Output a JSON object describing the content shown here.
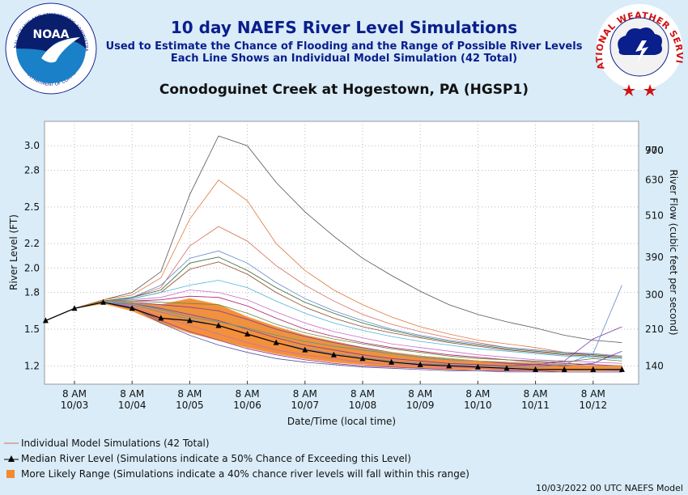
{
  "header": {
    "title": "10 day NAEFS River Level Simulations",
    "subtitle1": "Used to Estimate the Chance of Flooding and the Range of Possible River Levels",
    "subtitle2": "Each Line Shows an Individual Model Simulation (42 Total)",
    "station": "Conodoguinet Creek at Hogestown, PA (HGSP1)"
  },
  "logos": {
    "noaa_text": "NOAA",
    "noaa_ring": "NATIONAL OCEANIC AND ATMOSPHERIC ADMINISTRATION",
    "noaa_ring_bottom": "U.S. DEPARTMENT OF COMMERCE",
    "nws_ring": "NATIONAL WEATHER SERVICE"
  },
  "chart_data": {
    "type": "line",
    "xlabel": "Date/Time (local time)",
    "ylabel": "River Level (FT)",
    "ylabel_right": "River Flow (cubic feet per second)",
    "ylim": [
      1.05,
      3.2
    ],
    "x_ticks": [
      {
        "time": "8 AM",
        "date": "10/03"
      },
      {
        "time": "8 AM",
        "date": "10/04"
      },
      {
        "time": "8 AM",
        "date": "10/05"
      },
      {
        "time": "8 AM",
        "date": "10/06"
      },
      {
        "time": "8 AM",
        "date": "10/07"
      },
      {
        "time": "8 AM",
        "date": "10/08"
      },
      {
        "time": "8 AM",
        "date": "10/09"
      },
      {
        "time": "8 AM",
        "date": "10/10"
      },
      {
        "time": "8 AM",
        "date": "10/11"
      },
      {
        "time": "8 AM",
        "date": "10/12"
      }
    ],
    "y_ticks": [
      1.2,
      1.5,
      1.8,
      2.0,
      2.2,
      2.5,
      2.8,
      3.0
    ],
    "y_tick_labels": [
      "1.2",
      "1.5",
      "1.8",
      "2.0",
      "2.2",
      "2.5",
      "2.8",
      "3.0"
    ],
    "y2_ticks": [
      {
        "level": 1.2,
        "label": "140"
      },
      {
        "level": 1.5,
        "label": "210"
      },
      {
        "level": 1.78,
        "label": "300"
      },
      {
        "level": 2.09,
        "label": "390"
      },
      {
        "level": 2.43,
        "label": "510"
      },
      {
        "level": 2.72,
        "label": "630"
      },
      {
        "level": 3.01,
        "label": "770"
      },
      {
        "level": 3.26,
        "label": "900"
      }
    ],
    "y2_tick_labels_ordered": [
      "140",
      "210",
      "300",
      "390",
      "510",
      "630",
      "770",
      "900"
    ],
    "grid": true,
    "series": [
      {
        "values": [
          1.57,
          1.67,
          1.74,
          1.8,
          1.97,
          2.6,
          3.08,
          3.0,
          2.7,
          2.46,
          2.26,
          2.08,
          1.94,
          1.81,
          1.7,
          1.62,
          1.56,
          1.51,
          1.45,
          1.41,
          1.39
        ],
        "color": "#555555"
      },
      {
        "values": [
          1.57,
          1.67,
          1.74,
          1.78,
          1.92,
          2.4,
          2.72,
          2.55,
          2.2,
          1.98,
          1.82,
          1.7,
          1.6,
          1.52,
          1.46,
          1.41,
          1.38,
          1.35,
          1.31,
          1.29,
          1.27
        ],
        "color": "#e0783c"
      },
      {
        "values": [
          1.57,
          1.67,
          1.73,
          1.76,
          1.84,
          2.18,
          2.34,
          2.22,
          2.02,
          1.86,
          1.73,
          1.62,
          1.54,
          1.48,
          1.43,
          1.39,
          1.35,
          1.33,
          1.31,
          1.29,
          1.28
        ],
        "color": "#d96a5a"
      },
      {
        "values": [
          1.57,
          1.67,
          1.73,
          1.76,
          1.86,
          2.08,
          2.14,
          2.04,
          1.88,
          1.75,
          1.65,
          1.57,
          1.5,
          1.45,
          1.41,
          1.38,
          1.35,
          1.33,
          1.31,
          1.3,
          1.28
        ],
        "color": "#6688cc"
      },
      {
        "values": [
          1.57,
          1.67,
          1.73,
          1.76,
          1.82,
          2.04,
          2.09,
          1.98,
          1.84,
          1.72,
          1.63,
          1.55,
          1.49,
          1.44,
          1.4,
          1.37,
          1.34,
          1.32,
          1.3,
          1.29,
          1.27
        ],
        "color": "#3a6b3a"
      },
      {
        "values": [
          1.57,
          1.67,
          1.73,
          1.75,
          1.8,
          1.99,
          2.05,
          1.95,
          1.8,
          1.68,
          1.59,
          1.52,
          1.47,
          1.43,
          1.39,
          1.36,
          1.33,
          1.31,
          1.29,
          1.28,
          1.26
        ],
        "color": "#8b4a2a"
      },
      {
        "values": [
          1.57,
          1.67,
          1.73,
          1.75,
          1.8,
          1.86,
          1.9,
          1.84,
          1.73,
          1.63,
          1.55,
          1.49,
          1.44,
          1.4,
          1.37,
          1.34,
          1.32,
          1.3,
          1.28,
          1.27,
          1.26
        ],
        "color": "#4fb4d8"
      },
      {
        "values": [
          1.57,
          1.67,
          1.73,
          1.74,
          1.76,
          1.82,
          1.8,
          1.74,
          1.64,
          1.55,
          1.48,
          1.43,
          1.38,
          1.35,
          1.32,
          1.29,
          1.27,
          1.25,
          1.24,
          1.23,
          1.22
        ],
        "color": "#c86ec8"
      },
      {
        "values": [
          1.57,
          1.67,
          1.73,
          1.73,
          1.74,
          1.77,
          1.76,
          1.69,
          1.59,
          1.5,
          1.44,
          1.39,
          1.35,
          1.32,
          1.29,
          1.27,
          1.25,
          1.23,
          1.22,
          1.21,
          1.2
        ],
        "color": "#b0206a"
      },
      {
        "values": [
          1.57,
          1.67,
          1.73,
          1.72,
          1.7,
          1.68,
          1.65,
          1.58,
          1.5,
          1.44,
          1.39,
          1.35,
          1.31,
          1.28,
          1.26,
          1.24,
          1.22,
          1.21,
          1.2,
          1.22,
          1.32
        ],
        "color": "#7a3aa8"
      },
      {
        "values": [
          1.57,
          1.67,
          1.72,
          1.71,
          1.67,
          1.62,
          1.57,
          1.5,
          1.43,
          1.37,
          1.33,
          1.29,
          1.26,
          1.24,
          1.22,
          1.21,
          1.2,
          1.21,
          1.24,
          1.42,
          1.52
        ],
        "color": "#7a3aa8"
      },
      {
        "values": [
          1.57,
          1.67,
          1.72,
          1.7,
          1.64,
          1.58,
          1.53,
          1.46,
          1.39,
          1.34,
          1.3,
          1.27,
          1.24,
          1.22,
          1.21,
          1.2,
          1.19,
          1.19,
          1.21,
          1.3,
          1.86
        ],
        "color": "#6688cc"
      },
      {
        "values": [
          1.57,
          1.67,
          1.72,
          1.69,
          1.6,
          1.53,
          1.46,
          1.39,
          1.33,
          1.29,
          1.26,
          1.23,
          1.21,
          1.2,
          1.19,
          1.18,
          1.17,
          1.17,
          1.17,
          1.17,
          1.16
        ],
        "color": "#c070c0"
      },
      {
        "values": [
          1.57,
          1.67,
          1.72,
          1.68,
          1.57,
          1.48,
          1.41,
          1.34,
          1.29,
          1.25,
          1.22,
          1.2,
          1.19,
          1.18,
          1.17,
          1.16,
          1.16,
          1.16,
          1.15,
          1.15,
          1.15
        ],
        "color": "#9a3a9a"
      },
      {
        "values": [
          1.57,
          1.67,
          1.72,
          1.68,
          1.55,
          1.45,
          1.37,
          1.31,
          1.26,
          1.23,
          1.21,
          1.19,
          1.18,
          1.17,
          1.16,
          1.16,
          1.15,
          1.15,
          1.15,
          1.15,
          1.15
        ],
        "color": "#555599"
      },
      {
        "values": [
          1.57,
          1.67,
          1.72,
          1.71,
          1.66,
          1.6,
          1.56,
          1.51,
          1.45,
          1.4,
          1.36,
          1.33,
          1.3,
          1.27,
          1.25,
          1.24,
          1.23,
          1.22,
          1.21,
          1.2,
          1.2
        ],
        "color": "#40a0a0"
      },
      {
        "values": [
          1.57,
          1.67,
          1.73,
          1.72,
          1.68,
          1.64,
          1.6,
          1.55,
          1.48,
          1.42,
          1.38,
          1.34,
          1.31,
          1.28,
          1.26,
          1.24,
          1.23,
          1.22,
          1.21,
          1.2,
          1.2
        ],
        "color": "#d0a050"
      },
      {
        "values": [
          1.57,
          1.67,
          1.73,
          1.73,
          1.72,
          1.71,
          1.7,
          1.63,
          1.54,
          1.47,
          1.42,
          1.38,
          1.34,
          1.31,
          1.28,
          1.26,
          1.25,
          1.24,
          1.23,
          1.26,
          1.24
        ],
        "color": "#6a8a3a"
      }
    ],
    "range_band": {
      "upper": [
        1.57,
        1.67,
        1.72,
        1.72,
        1.7,
        1.75,
        1.7,
        1.6,
        1.52,
        1.45,
        1.4,
        1.35,
        1.31,
        1.28,
        1.26,
        1.24,
        1.23,
        1.22,
        1.21,
        1.2,
        1.2
      ],
      "lower": [
        1.57,
        1.67,
        1.71,
        1.65,
        1.55,
        1.47,
        1.41,
        1.35,
        1.3,
        1.26,
        1.23,
        1.21,
        1.19,
        1.18,
        1.17,
        1.17,
        1.16,
        1.16,
        1.16,
        1.16,
        1.16
      ]
    },
    "median": [
      1.57,
      1.67,
      1.72,
      1.67,
      1.59,
      1.57,
      1.53,
      1.46,
      1.39,
      1.33,
      1.29,
      1.26,
      1.23,
      1.21,
      1.2,
      1.19,
      1.18,
      1.17,
      1.17,
      1.17,
      1.17
    ],
    "x_step_hours": 12,
    "first_point": "10/02 20:00"
  },
  "legend": {
    "individual": "Individual Model Simulations (42 Total)",
    "median": "Median River Level (Simulations indicate a 50% Chance of Exceeding this Level)",
    "range": "More Likely Range (Simulations indicate a 40% chance river levels will fall within this range)"
  },
  "footer": "10/03/2022 00 UTC NAEFS Model",
  "colors": {
    "background": "#d9ecf8",
    "plot_bg": "#ffffff",
    "title": "#0a1e8c",
    "band": "#f28a30",
    "band_edge": "#f5a050",
    "median": "#000000"
  }
}
